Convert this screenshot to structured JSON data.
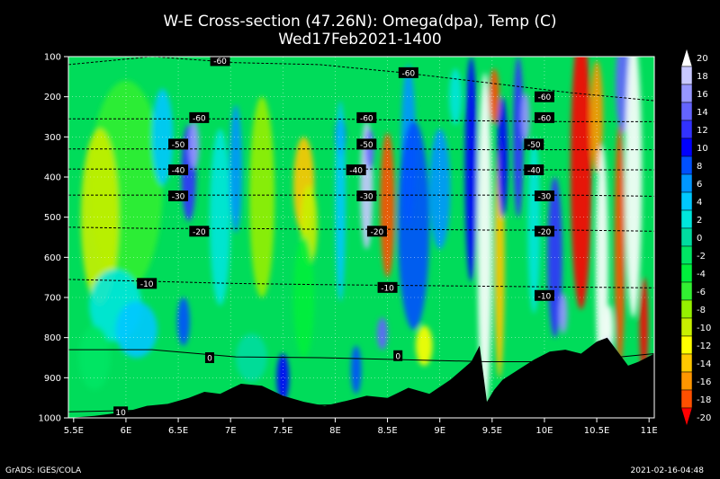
{
  "chart_data": {
    "type": "heatmap",
    "title": "W-E Cross-section (47.26N): Omega(dpa), Temp (C)",
    "subtitle": "Wed17Feb2021-1400",
    "x_ticks": [
      "5.5E",
      "6E",
      "6.5E",
      "7E",
      "7.5E",
      "8E",
      "8.5E",
      "9E",
      "9.5E",
      "10E",
      "10.5E",
      "11E"
    ],
    "x_tick_values": [
      5.5,
      6,
      6.5,
      7,
      7.5,
      8,
      8.5,
      9,
      9.5,
      10,
      10.5,
      11
    ],
    "xlim": [
      5.45,
      11.05
    ],
    "y_ticks": [
      "100",
      "200",
      "300",
      "400",
      "500",
      "600",
      "700",
      "800",
      "900",
      "1000"
    ],
    "y_tick_values": [
      100,
      200,
      300,
      400,
      500,
      600,
      700,
      800,
      900,
      1000
    ],
    "ylim": [
      100,
      1000
    ],
    "colorbar": {
      "labels": [
        "20",
        "18",
        "16",
        "14",
        "12",
        "10",
        "8",
        "6",
        "4",
        "2",
        "0",
        "-2",
        "-4",
        "-6",
        "-8",
        "-10",
        "-12",
        "-14",
        "-16",
        "-18",
        "-20"
      ],
      "colors": [
        "#ffffff",
        "#c8c8ff",
        "#9696ff",
        "#6464ff",
        "#3232ff",
        "#0000ff",
        "#0050ff",
        "#0096ff",
        "#00c8ff",
        "#00e6dc",
        "#00dca0",
        "#00e664",
        "#00f03c",
        "#32f032",
        "#96f000",
        "#c8f000",
        "#ffff00",
        "#ffc800",
        "#ff9600",
        "#ff5000",
        "#ff0000"
      ]
    },
    "temperature_contours": [
      {
        "label": "-60",
        "pressure": [
          120,
          100,
          115,
          120,
          140,
          165,
          190,
          210
        ]
      },
      {
        "label": "-60",
        "pressure": [
          255,
          255,
          255,
          255,
          258,
          260,
          262,
          262
        ]
      },
      {
        "label": "-50",
        "pressure": [
          330,
          330,
          330,
          330,
          330,
          332,
          332,
          332
        ]
      },
      {
        "label": "-40",
        "pressure": [
          380,
          380,
          380,
          380,
          380,
          382,
          382,
          382
        ]
      },
      {
        "label": "-30",
        "pressure": [
          445,
          445,
          445,
          445,
          445,
          445,
          445,
          448
        ]
      },
      {
        "label": "-20",
        "pressure": [
          525,
          528,
          528,
          530,
          530,
          532,
          532,
          535
        ]
      },
      {
        "label": "-10",
        "pressure": [
          655,
          660,
          665,
          668,
          670,
          672,
          674,
          676
        ]
      },
      {
        "label": "0",
        "pressure": [
          830,
          830,
          848,
          850,
          855,
          860,
          860,
          840
        ]
      },
      {
        "label": "10",
        "pressure": [
          985,
          980,
          972,
          968,
          965,
          962,
          960,
          958
        ]
      }
    ],
    "contour_label_positions": [
      {
        "text": "-60",
        "x": 6.9,
        "p": 110
      },
      {
        "text": "-60",
        "x": 8.7,
        "p": 140
      },
      {
        "text": "-60",
        "x": 10.0,
        "p": 200
      },
      {
        "text": "-60",
        "x": 6.7,
        "p": 252
      },
      {
        "text": "-60",
        "x": 8.3,
        "p": 252
      },
      {
        "text": "-60",
        "x": 10.0,
        "p": 252
      },
      {
        "text": "-50",
        "x": 6.5,
        "p": 318
      },
      {
        "text": "-50",
        "x": 8.3,
        "p": 318
      },
      {
        "text": "-50",
        "x": 9.9,
        "p": 318
      },
      {
        "text": "-40",
        "x": 6.5,
        "p": 382
      },
      {
        "text": "-40",
        "x": 8.2,
        "p": 382
      },
      {
        "text": "-40",
        "x": 9.9,
        "p": 382
      },
      {
        "text": "-30",
        "x": 6.5,
        "p": 447
      },
      {
        "text": "-30",
        "x": 8.3,
        "p": 447
      },
      {
        "text": "-30",
        "x": 10.0,
        "p": 447
      },
      {
        "text": "-20",
        "x": 6.7,
        "p": 535
      },
      {
        "text": "-20",
        "x": 8.4,
        "p": 535
      },
      {
        "text": "-20",
        "x": 10.0,
        "p": 535
      },
      {
        "text": "-10",
        "x": 6.2,
        "p": 665
      },
      {
        "text": "-10",
        "x": 8.5,
        "p": 675
      },
      {
        "text": "-10",
        "x": 10.0,
        "p": 695
      },
      {
        "text": "0",
        "x": 6.8,
        "p": 850
      },
      {
        "text": "0",
        "x": 8.6,
        "p": 845
      },
      {
        "text": "10",
        "x": 5.95,
        "p": 985
      }
    ],
    "terrain_pressure": {
      "x": [
        5.45,
        5.7,
        6.0,
        6.2,
        6.4,
        6.6,
        6.75,
        6.9,
        7.1,
        7.3,
        7.5,
        7.7,
        7.9,
        8.1,
        8.3,
        8.5,
        8.7,
        8.9,
        9.1,
        9.3,
        9.38,
        9.45,
        9.52,
        9.6,
        9.75,
        9.9,
        10.05,
        10.2,
        10.35,
        10.5,
        10.6,
        10.7,
        10.8,
        10.9,
        11.05
      ],
      "p": [
        1000,
        995,
        985,
        970,
        965,
        950,
        935,
        940,
        915,
        920,
        945,
        960,
        970,
        958,
        945,
        950,
        925,
        940,
        905,
        860,
        820,
        960,
        930,
        905,
        880,
        855,
        835,
        830,
        840,
        810,
        800,
        835,
        870,
        860,
        840
      ]
    }
  },
  "footer": {
    "left": "GrADS: IGES/COLA",
    "right": "2021-02-16-04:48"
  }
}
